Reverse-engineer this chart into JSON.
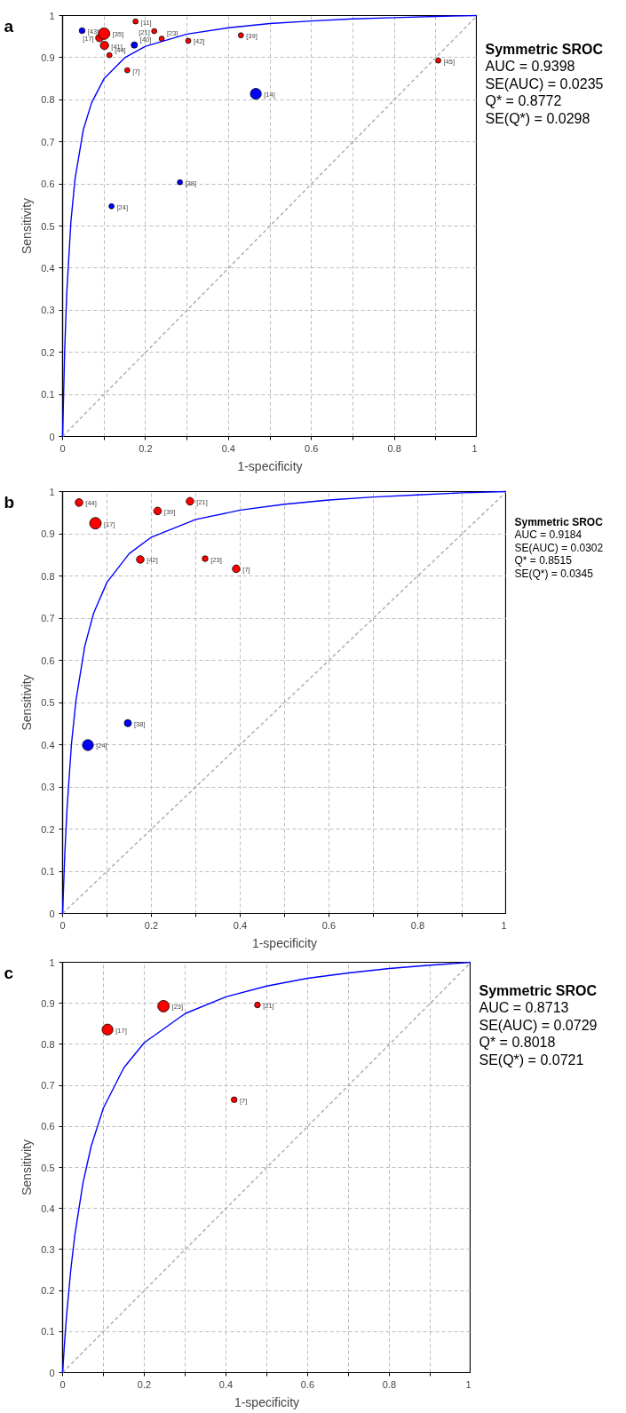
{
  "chart_data": [
    {
      "type": "bubble",
      "title": "a",
      "xlabel": "1-specificity",
      "ylabel": "Sensitivity",
      "xlim": [
        0,
        1
      ],
      "ylim": [
        0,
        1
      ],
      "xticks": [
        0,
        {
          "value": 0.1,
          "label": null
        },
        0.2,
        {
          "value": 0.3,
          "label": null
        },
        0.4,
        {
          "value": 0.5,
          "label": null
        },
        0.6,
        {
          "value": 0.7,
          "label": null
        },
        0.8,
        {
          "value": 0.9,
          "label": null
        },
        1
      ],
      "yticks": [
        0,
        0.1,
        0.2,
        0.3,
        0.4,
        0.5,
        0.6,
        0.7,
        0.8,
        0.9,
        1
      ],
      "grid": true,
      "series": [
        {
          "type": "line",
          "color": "#aaaaaa",
          "line_style": "dashed",
          "x": [
            0,
            1
          ],
          "values": [
            0,
            1
          ]
        },
        {
          "type": "line",
          "color": "#0000ff",
          "x": [
            0,
            0.005,
            0.01,
            0.02,
            0.03,
            0.05,
            0.07,
            0.1,
            0.15,
            0.2,
            0.3,
            0.4,
            0.5,
            0.6,
            0.7,
            0.8,
            0.9,
            1
          ],
          "values": [
            0,
            0.204,
            0.34,
            0.51,
            0.612,
            0.729,
            0.793,
            0.85,
            0.9,
            0.927,
            0.956,
            0.971,
            0.981,
            0.987,
            0.992,
            0.995,
            0.998,
            1
          ]
        },
        {
          "color": "#ff0000",
          "x": [
            0.089,
            0.1,
            0.176,
            0.101,
            0.221,
            0.239,
            0.303,
            0.43,
            0.113,
            0.156,
            0.906
          ],
          "values": [
            0.947,
            0.957,
            0.986,
            0.929,
            0.963,
            0.945,
            0.94,
            0.953,
            0.906,
            0.87,
            0.893
          ],
          "sizes": [
            0.45,
            1,
            0.2,
            0.52,
            0.2,
            0.2,
            0.2,
            0.2,
            0.2,
            0.2,
            0.2
          ]
        },
        {
          "color": "#0000ff",
          "x": [
            0.047,
            0.173,
            0.466,
            0.283,
            0.118
          ],
          "values": [
            0.964,
            0.93,
            0.814,
            0.604,
            0.547
          ],
          "sizes": [
            0.25,
            0.3,
            0.9,
            0.2,
            0.2
          ]
        }
      ],
      "annotations": [
        "Symmetric SROC",
        "AUC = 0.9398",
        "SE(AUC) = 0.0235",
        "Q* = 0.8772",
        "SE(Q*) = 0.0298",
        {
          "text": "[17]",
          "x": 0.089,
          "y": 0.947
        },
        {
          "text": "[35]",
          "x": 0.1,
          "y": 0.957
        },
        {
          "text": "[11]",
          "x": 0.176,
          "y": 0.986
        },
        {
          "text": "[41]",
          "x": 0.101,
          "y": 0.929
        },
        {
          "text": "[21]",
          "x": 0.221,
          "y": 0.963
        },
        {
          "text": "[23]",
          "x": 0.239,
          "y": 0.945
        },
        {
          "text": "[42]",
          "x": 0.303,
          "y": 0.94
        },
        {
          "text": "[39]",
          "x": 0.43,
          "y": 0.953
        },
        {
          "text": "[44]",
          "x": 0.113,
          "y": 0.906
        },
        {
          "text": "[7]",
          "x": 0.156,
          "y": 0.87
        },
        {
          "text": "[45]",
          "x": 0.906,
          "y": 0.893
        },
        {
          "text": "[43]",
          "x": 0.047,
          "y": 0.964
        },
        {
          "text": "[40]",
          "x": 0.173,
          "y": 0.93
        },
        {
          "text": "[14]",
          "x": 0.466,
          "y": 0.814
        },
        {
          "text": "[38]",
          "x": 0.283,
          "y": 0.604
        },
        {
          "text": "[24]",
          "x": 0.118,
          "y": 0.547
        }
      ]
    },
    {
      "type": "bubble",
      "title": "b",
      "xlabel": "1-specificity",
      "ylabel": "Sensitivity",
      "xlim": [
        0,
        1
      ],
      "ylim": [
        0,
        1
      ],
      "xticks": [
        0,
        {
          "value": 0.1,
          "label": null
        },
        0.2,
        {
          "value": 0.3,
          "label": null
        },
        0.4,
        {
          "value": 0.5,
          "label": null
        },
        0.6,
        {
          "value": 0.7,
          "label": null
        },
        0.8,
        {
          "value": 0.9,
          "label": null
        },
        1
      ],
      "yticks": [
        0,
        0.1,
        0.2,
        0.3,
        0.4,
        0.5,
        0.6,
        0.7,
        0.8,
        0.9,
        1
      ],
      "grid": true,
      "series": [
        {
          "type": "line",
          "color": "#aaaaaa",
          "line_style": "dashed",
          "x": [
            0,
            1
          ],
          "values": [
            0,
            1
          ]
        },
        {
          "type": "line",
          "color": "#0000ff",
          "x": [
            0,
            0.005,
            0.01,
            0.02,
            0.03,
            0.05,
            0.07,
            0.1,
            0.15,
            0.2,
            0.3,
            0.4,
            0.5,
            0.6,
            0.7,
            0.8,
            0.9,
            1
          ],
          "values": [
            0,
            0.142,
            0.249,
            0.402,
            0.504,
            0.634,
            0.712,
            0.785,
            0.853,
            0.892,
            0.934,
            0.956,
            0.97,
            0.98,
            0.987,
            0.992,
            0.997,
            1
          ]
        },
        {
          "color": "#ff0000",
          "x": [
            0.037,
            0.074,
            0.214,
            0.287,
            0.175,
            0.321,
            0.391
          ],
          "values": [
            0.974,
            0.925,
            0.954,
            0.977,
            0.839,
            0.841,
            0.817
          ],
          "sizes": [
            0.44,
            1,
            0.44,
            0.44,
            0.44,
            0.25,
            0.44
          ]
        },
        {
          "color": "#0000ff",
          "x": [
            0.147,
            0.057
          ],
          "values": [
            0.451,
            0.399
          ],
          "sizes": [
            0.38,
            0.9
          ]
        }
      ],
      "annotations": [
        "Symmetric SROC",
        "AUC = 0.9184",
        "SE(AUC) = 0.0302",
        "Q* = 0.8515",
        "SE(Q*) = 0.0345",
        {
          "text": "[44]",
          "x": 0.037,
          "y": 0.974
        },
        {
          "text": "[17]",
          "x": 0.074,
          "y": 0.925
        },
        {
          "text": "[39]",
          "x": 0.214,
          "y": 0.954
        },
        {
          "text": "[21]",
          "x": 0.287,
          "y": 0.977
        },
        {
          "text": "[42]",
          "x": 0.175,
          "y": 0.839
        },
        {
          "text": "[23]",
          "x": 0.321,
          "y": 0.841
        },
        {
          "text": "[7]",
          "x": 0.391,
          "y": 0.817
        },
        {
          "text": "[38]",
          "x": 0.147,
          "y": 0.451
        },
        {
          "text": "[24]",
          "x": 0.057,
          "y": 0.399
        }
      ]
    },
    {
      "type": "bubble",
      "title": "c",
      "xlabel": "1-specificity",
      "ylabel": "Sensitivity",
      "xlim": [
        0,
        1
      ],
      "ylim": [
        0,
        1
      ],
      "xticks": [
        0,
        {
          "value": 0.1,
          "label": null
        },
        0.2,
        {
          "value": 0.3,
          "label": null
        },
        0.4,
        {
          "value": 0.5,
          "label": null
        },
        0.6,
        {
          "value": 0.7,
          "label": null
        },
        0.8,
        {
          "value": 0.9,
          "label": null
        },
        1
      ],
      "yticks": [
        0,
        0.1,
        0.2,
        0.3,
        0.4,
        0.5,
        0.6,
        0.7,
        0.8,
        0.9,
        1
      ],
      "grid": true,
      "series": [
        {
          "type": "line",
          "color": "#aaaaaa",
          "line_style": "dashed",
          "x": [
            0,
            1
          ],
          "values": [
            0,
            1
          ]
        },
        {
          "type": "line",
          "color": "#0000ff",
          "x": [
            0,
            0.005,
            0.01,
            0.02,
            0.03,
            0.05,
            0.07,
            0.1,
            0.15,
            0.2,
            0.3,
            0.4,
            0.5,
            0.6,
            0.7,
            0.8,
            0.9,
            1
          ],
          "values": [
            0,
            0.076,
            0.142,
            0.25,
            0.336,
            0.463,
            0.552,
            0.645,
            0.743,
            0.804,
            0.875,
            0.916,
            0.942,
            0.961,
            0.974,
            0.985,
            0.993,
            1
          ]
        },
        {
          "color": "#ff0000",
          "x": [
            0.11,
            0.247,
            0.477,
            0.42
          ],
          "values": [
            0.836,
            0.893,
            0.896,
            0.665
          ],
          "sizes": [
            0.9,
            1,
            0.25,
            0.25
          ]
        }
      ],
      "annotations": [
        "Symmetric SROC",
        "AUC = 0.8713",
        "SE(AUC) = 0.0729",
        "Q* = 0.8018",
        "SE(Q*) = 0.0721",
        {
          "text": "[17]",
          "x": 0.11,
          "y": 0.836
        },
        {
          "text": "[23]",
          "x": 0.247,
          "y": 0.893
        },
        {
          "text": "[21]",
          "x": 0.477,
          "y": 0.896
        },
        {
          "text": "[7]",
          "x": 0.42,
          "y": 0.665
        }
      ]
    }
  ]
}
